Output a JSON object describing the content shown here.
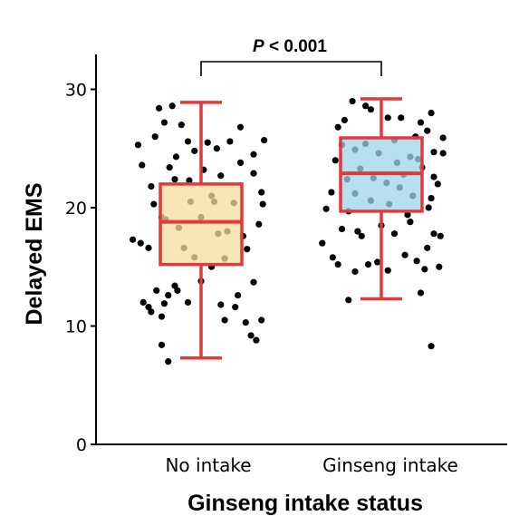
{
  "chart_data": {
    "type": "box",
    "xlabel": "Ginseng intake status",
    "ylabel": "Delayed EMS",
    "ylim": [
      0,
      33
    ],
    "yticks": [
      0,
      10,
      20,
      30
    ],
    "categories": [
      "No intake",
      "Ginseng intake"
    ],
    "annotation": {
      "p": "P",
      "rest": " < 0.001"
    },
    "colors": {
      "box_no_intake": "#f5df9e",
      "box_ginseng": "#9ed4ea",
      "box_stroke": "#e03a3a",
      "points": "#000000",
      "axis": "#000000"
    },
    "boxes": [
      {
        "category": "No intake",
        "min": 7.3,
        "q1": 15.2,
        "median": 18.8,
        "q3": 22.0,
        "max": 28.9
      },
      {
        "category": "Ginseng intake",
        "min": 12.3,
        "q1": 19.7,
        "median": 22.9,
        "q3": 25.9,
        "max": 29.2
      }
    ],
    "points": [
      [
        [
          -0.48,
          25.3
        ],
        [
          -0.52,
          17.3
        ],
        [
          -0.45,
          23.6
        ],
        [
          -0.38,
          21.8
        ],
        [
          -0.32,
          28.4
        ],
        [
          -0.28,
          27.2
        ],
        [
          -0.35,
          26.0
        ],
        [
          -0.44,
          12.0
        ],
        [
          -0.4,
          11.6
        ],
        [
          -0.3,
          10.8
        ],
        [
          -0.22,
          28.6
        ],
        [
          -0.15,
          27.0
        ],
        [
          -0.1,
          25.6
        ],
        [
          -0.05,
          24.8
        ],
        [
          0.05,
          25.5
        ],
        [
          0.12,
          25.0
        ],
        [
          0.22,
          25.6
        ],
        [
          0.3,
          26.8
        ],
        [
          0.4,
          24.5
        ],
        [
          0.48,
          25.7
        ],
        [
          -0.46,
          17.0
        ],
        [
          -0.4,
          16.6
        ],
        [
          -0.36,
          20.3
        ],
        [
          -0.3,
          19.2
        ],
        [
          -0.27,
          19.0
        ],
        [
          -0.25,
          12.6
        ],
        [
          -0.2,
          13.4
        ],
        [
          -0.18,
          13.0
        ],
        [
          -0.28,
          11.9
        ],
        [
          -0.3,
          8.4
        ],
        [
          -0.25,
          7.0
        ],
        [
          -0.1,
          12.0
        ],
        [
          0.0,
          13.8
        ],
        [
          0.08,
          15.0
        ],
        [
          0.15,
          11.8
        ],
        [
          0.26,
          11.6
        ],
        [
          0.28,
          12.6
        ],
        [
          0.34,
          10.3
        ],
        [
          0.42,
          8.8
        ],
        [
          0.46,
          10.5
        ],
        [
          0.38,
          9.2
        ],
        [
          0.4,
          13.7
        ],
        [
          0.35,
          16.5
        ],
        [
          0.32,
          17.6
        ],
        [
          0.44,
          18.6
        ],
        [
          0.47,
          20.3
        ],
        [
          0.4,
          22.9
        ],
        [
          0.3,
          23.8
        ],
        [
          0.46,
          21.3
        ],
        [
          -0.38,
          11.2
        ],
        [
          -0.34,
          13.0
        ],
        [
          -0.2,
          22.4
        ],
        [
          -0.13,
          16.6
        ],
        [
          -0.08,
          20.5
        ],
        [
          0.0,
          19.2
        ],
        [
          0.08,
          21.0
        ],
        [
          0.13,
          17.8
        ],
        [
          0.2,
          18.0
        ],
        [
          0.18,
          15.7
        ],
        [
          -0.05,
          15.8
        ],
        [
          0.1,
          20.5
        ],
        [
          -0.17,
          18.3
        ],
        [
          -0.19,
          24.3
        ],
        [
          0.02,
          23.2
        ],
        [
          -0.09,
          22.3
        ],
        [
          0.15,
          22.7
        ],
        [
          0.25,
          20.4
        ],
        [
          -0.24,
          23.4
        ],
        [
          0.18,
          10.5
        ]
      ],
      [
        [
          -0.45,
          17.0
        ],
        [
          -0.42,
          19.9
        ],
        [
          -0.38,
          21.3
        ],
        [
          -0.35,
          24.0
        ],
        [
          -0.28,
          27.4
        ],
        [
          -0.22,
          29.0
        ],
        [
          -0.12,
          28.6
        ],
        [
          -0.08,
          28.3
        ],
        [
          0.05,
          27.6
        ],
        [
          0.15,
          27.6
        ],
        [
          0.3,
          27.2
        ],
        [
          0.38,
          28.0
        ],
        [
          0.35,
          26.5
        ],
        [
          0.47,
          25.9
        ],
        [
          0.4,
          24.7
        ],
        [
          0.47,
          24.6
        ],
        [
          0.4,
          22.6
        ],
        [
          0.43,
          22.0
        ],
        [
          0.38,
          20.8
        ],
        [
          0.36,
          20.0
        ],
        [
          0.4,
          17.8
        ],
        [
          0.45,
          17.6
        ],
        [
          0.35,
          16.6
        ],
        [
          0.44,
          15.0
        ],
        [
          0.33,
          14.8
        ],
        [
          0.3,
          12.8
        ],
        [
          0.38,
          8.3
        ],
        [
          -0.25,
          12.2
        ],
        [
          -0.2,
          14.6
        ],
        [
          -0.1,
          15.2
        ],
        [
          -0.03,
          15.4
        ],
        [
          0.05,
          14.7
        ],
        [
          0.18,
          16.0
        ],
        [
          0.27,
          15.5
        ],
        [
          0.22,
          18.8
        ],
        [
          -0.18,
          18.0
        ],
        [
          -0.3,
          18.2
        ],
        [
          -0.37,
          15.8
        ],
        [
          -0.33,
          15.2
        ],
        [
          -0.25,
          19.7
        ],
        [
          -0.15,
          17.6
        ],
        [
          0.0,
          18.5
        ],
        [
          0.1,
          17.8
        ],
        [
          0.2,
          19.4
        ],
        [
          -0.3,
          25.3
        ],
        [
          -0.2,
          24.9
        ],
        [
          -0.12,
          25.4
        ],
        [
          -0.02,
          24.6
        ],
        [
          0.1,
          25.7
        ],
        [
          0.22,
          24.3
        ],
        [
          0.28,
          24.1
        ],
        [
          -0.26,
          22.4
        ],
        [
          -0.16,
          23.3
        ],
        [
          -0.06,
          22.5
        ],
        [
          0.04,
          22.1
        ],
        [
          0.14,
          21.7
        ],
        [
          0.24,
          21.0
        ],
        [
          -0.2,
          21.2
        ],
        [
          -0.08,
          20.6
        ],
        [
          0.06,
          20.3
        ],
        [
          0.17,
          22.8
        ],
        [
          -0.33,
          26.8
        ],
        [
          0.26,
          26.0
        ],
        [
          0.31,
          23.4
        ],
        [
          0.12,
          23.8
        ]
      ]
    ]
  }
}
